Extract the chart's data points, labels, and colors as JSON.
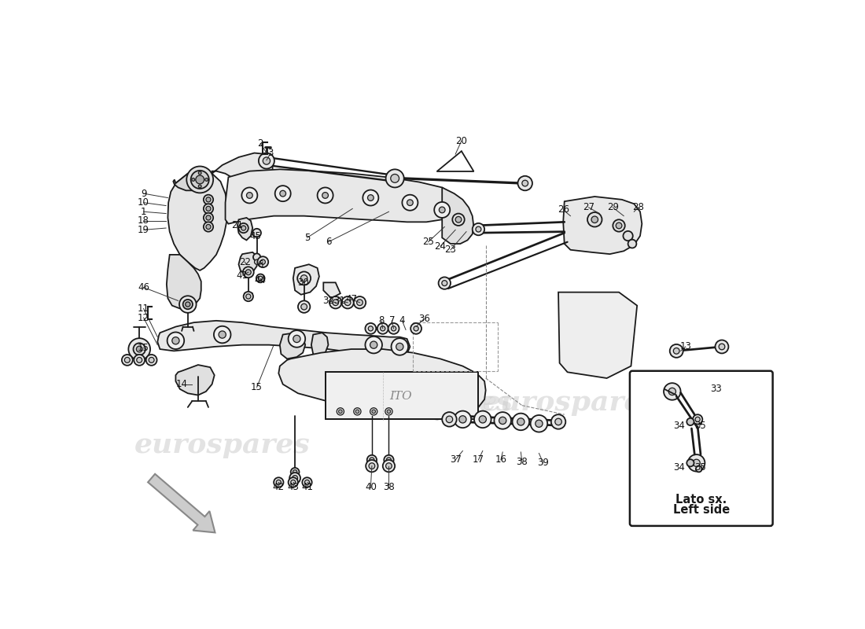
{
  "background_color": "#ffffff",
  "line_color": "#1a1a1a",
  "fill_color": "#f0f0f0",
  "watermark_color": "#cccccc",
  "watermark_text": "eurospares",
  "inset_label_line1": "Lato sx.",
  "inset_label_line2": "Left side"
}
